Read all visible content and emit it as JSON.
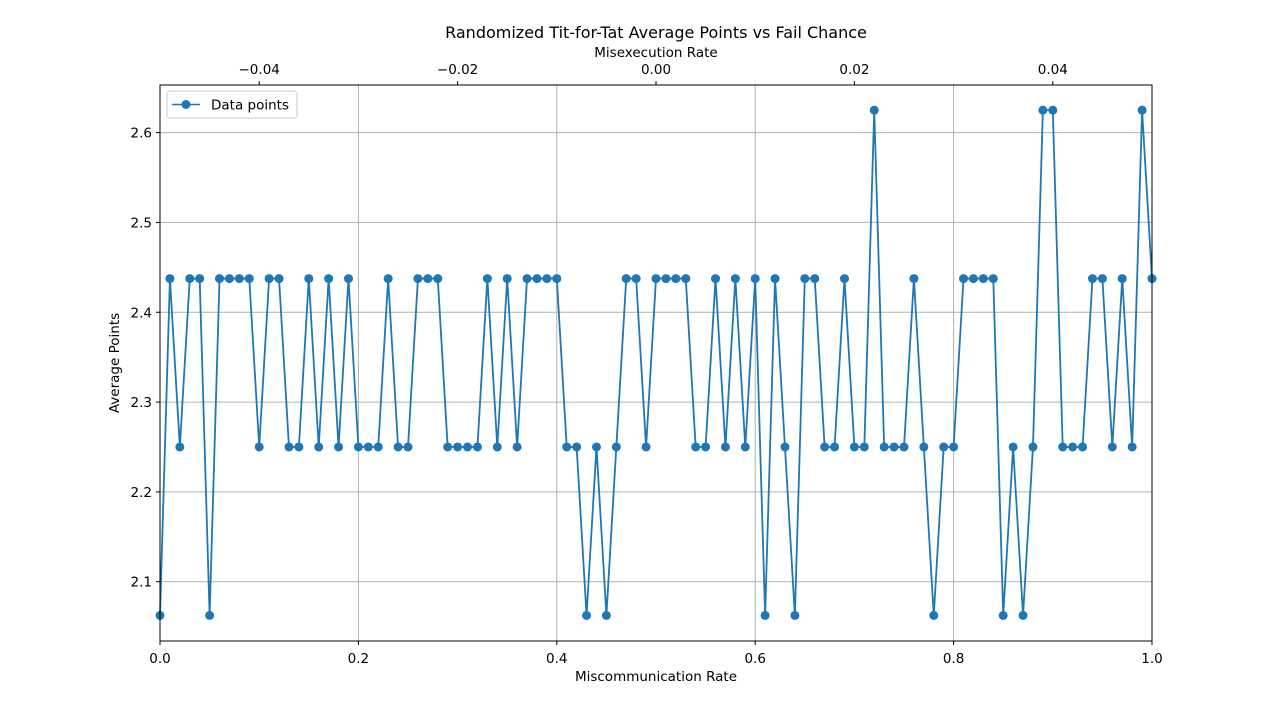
{
  "chart_data": {
    "type": "line",
    "title": "Randomized Tit-for-Tat Average Points vs Fail Chance",
    "xlabel": "Miscommunication Rate",
    "ylabel": "Average Points",
    "x2label": "Misexecution Rate",
    "xlim": [
      0,
      1
    ],
    "ylim": [
      2.034,
      2.653
    ],
    "x2lim": [
      -0.05,
      0.05
    ],
    "xticks": [
      0.0,
      0.2,
      0.4,
      0.6,
      0.8,
      1.0
    ],
    "xtick_labels": [
      "0.0",
      "0.2",
      "0.4",
      "0.6",
      "0.8",
      "1.0"
    ],
    "yticks": [
      2.1,
      2.2,
      2.3,
      2.4,
      2.5,
      2.6
    ],
    "ytick_labels": [
      "2.1",
      "2.2",
      "2.3",
      "2.4",
      "2.5",
      "2.6"
    ],
    "x2ticks": [
      -0.04,
      -0.02,
      0.0,
      0.02,
      0.04
    ],
    "x2tick_labels": [
      "−0.04",
      "−0.02",
      "0.00",
      "0.02",
      "0.04"
    ],
    "grid": true,
    "legend_position": "top-left",
    "color": "#1f77b4",
    "series": [
      {
        "name": "Data points",
        "x": [
          0.0,
          0.01,
          0.02,
          0.03,
          0.04,
          0.05,
          0.06,
          0.07,
          0.08,
          0.09,
          0.1,
          0.11,
          0.12,
          0.13,
          0.14,
          0.15,
          0.16,
          0.17,
          0.18,
          0.19,
          0.2,
          0.21,
          0.22,
          0.23,
          0.24,
          0.25,
          0.26,
          0.27,
          0.28,
          0.29,
          0.3,
          0.31,
          0.32,
          0.33,
          0.34,
          0.35,
          0.36,
          0.37,
          0.38,
          0.39,
          0.4,
          0.41,
          0.42,
          0.43,
          0.44,
          0.45,
          0.46,
          0.47,
          0.48,
          0.49,
          0.5,
          0.51,
          0.52,
          0.53,
          0.54,
          0.55,
          0.56,
          0.57,
          0.58,
          0.59,
          0.6,
          0.61,
          0.62,
          0.63,
          0.64,
          0.65,
          0.66,
          0.67,
          0.68,
          0.69,
          0.7,
          0.71,
          0.72,
          0.73,
          0.74,
          0.75,
          0.76,
          0.77,
          0.78,
          0.79,
          0.8,
          0.81,
          0.82,
          0.83,
          0.84,
          0.85,
          0.86,
          0.87,
          0.88,
          0.89,
          0.9,
          0.91,
          0.92,
          0.93,
          0.94,
          0.95,
          0.96,
          0.97,
          0.98,
          0.99,
          1.0
        ],
        "y": [
          2.0625,
          2.4375,
          2.25,
          2.4375,
          2.4375,
          2.0625,
          2.4375,
          2.4375,
          2.4375,
          2.4375,
          2.25,
          2.4375,
          2.4375,
          2.25,
          2.25,
          2.4375,
          2.25,
          2.4375,
          2.25,
          2.4375,
          2.25,
          2.25,
          2.25,
          2.4375,
          2.25,
          2.25,
          2.4375,
          2.4375,
          2.4375,
          2.25,
          2.25,
          2.25,
          2.25,
          2.4375,
          2.25,
          2.4375,
          2.25,
          2.4375,
          2.4375,
          2.4375,
          2.4375,
          2.25,
          2.25,
          2.0625,
          2.25,
          2.0625,
          2.25,
          2.4375,
          2.4375,
          2.25,
          2.4375,
          2.4375,
          2.4375,
          2.4375,
          2.25,
          2.25,
          2.4375,
          2.25,
          2.4375,
          2.25,
          2.4375,
          2.0625,
          2.4375,
          2.25,
          2.0625,
          2.4375,
          2.4375,
          2.25,
          2.25,
          2.4375,
          2.25,
          2.25,
          2.625,
          2.25,
          2.25,
          2.25,
          2.4375,
          2.25,
          2.0625,
          2.25,
          2.25,
          2.4375,
          2.4375,
          2.4375,
          2.4375,
          2.0625,
          2.25,
          2.0625,
          2.25,
          2.625,
          2.625,
          2.25,
          2.25,
          2.25,
          2.4375,
          2.4375,
          2.25,
          2.4375,
          2.25,
          2.625,
          2.4375
        ]
      }
    ]
  }
}
